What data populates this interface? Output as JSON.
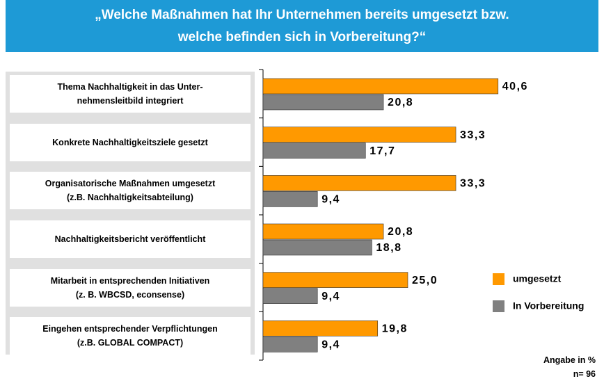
{
  "chart_data": {
    "type": "bar",
    "orientation": "horizontal",
    "title": "„Welche Maßnahmen hat Ihr Unternehmen bereits umgesetzt bzw.\nwelche befinden sich in Vorbereitung?“",
    "categories": [
      "Thema Nachhaltigkeit in das Unter-\nnehmensleitbild integriert",
      "Konkrete Nachhaltigkeitsziele gesetzt",
      "Organisatorische Maßnahmen umgesetzt\n(z.B. Nachhaltigkeitsabteilung)",
      "Nachhaltigkeitsbericht veröffentlicht",
      "Mitarbeit in entsprechenden Initiativen\n(z. B. WBCSD, econsense)",
      "Eingehen entsprechender Verpflichtungen\n(z.B. GLOBAL COMPACT)"
    ],
    "series": [
      {
        "name": "umgesetzt",
        "color": "#ff9900",
        "values": [
          40.6,
          33.3,
          33.3,
          20.8,
          25.0,
          19.8
        ],
        "value_labels": [
          "40,6",
          "33,3",
          "33,3",
          "20,8",
          "25,0",
          "19,8"
        ]
      },
      {
        "name": "In Vorbereitung",
        "color": "#808080",
        "values": [
          20.8,
          17.7,
          9.4,
          18.8,
          9.4,
          9.4
        ],
        "value_labels": [
          "20,8",
          "17,7",
          "9,4",
          "18,8",
          "9,4",
          "9,4"
        ]
      }
    ],
    "xlim": [
      0,
      50
    ],
    "notes": [
      "Angabe in %",
      "n= 96"
    ]
  }
}
